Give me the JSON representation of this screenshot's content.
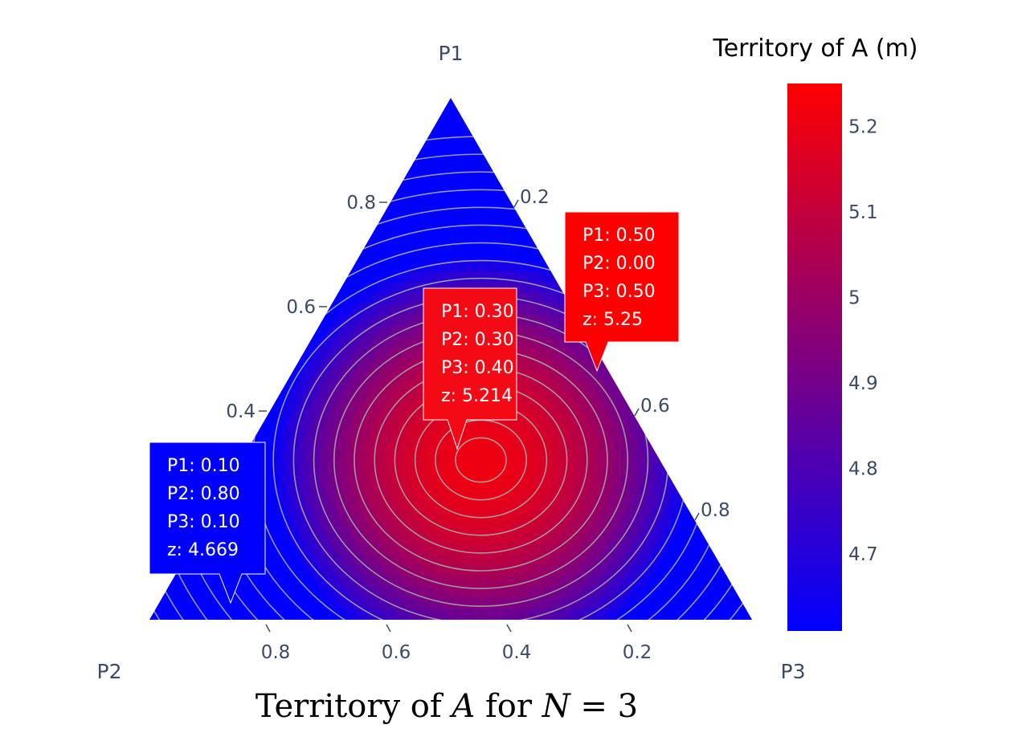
{
  "chart_data": {
    "type": "ternary-contour",
    "title_parts": [
      {
        "text": "Territory of ",
        "italic": false
      },
      {
        "text": "A",
        "italic": true
      },
      {
        "text": " for ",
        "italic": false
      },
      {
        "text": "N",
        "italic": true
      },
      {
        "text": " = 3",
        "italic": false
      }
    ],
    "axes": {
      "a": {
        "title": "P1",
        "ticks": [
          "0.8",
          "0.6",
          "0.4"
        ],
        "tick_values": [
          0.8,
          0.6,
          0.4
        ]
      },
      "b": {
        "title": "P2",
        "ticks": [
          "0.8",
          "0.6",
          "0.4",
          "0.2"
        ],
        "tick_values": [
          0.8,
          0.6,
          0.4,
          0.2
        ]
      },
      "c": {
        "title": "P3",
        "ticks": [
          "0.2",
          "0.6",
          "0.8"
        ],
        "tick_values": [
          0.2,
          0.6,
          0.8
        ]
      }
    },
    "colorbar": {
      "title": "Territory of A (m)",
      "ticks": [
        "5.2",
        "5.1",
        "5",
        "4.9",
        "4.8",
        "4.7"
      ],
      "tick_values": [
        5.2,
        5.1,
        5.0,
        4.9,
        4.8,
        4.7
      ],
      "range": [
        4.61,
        5.25
      ],
      "colorscale": [
        "#0000ff",
        "#ff0000"
      ]
    },
    "peak": {
      "P1": 0.3,
      "P2": 0.3,
      "P3": 0.4,
      "z": 5.214
    },
    "annotations": [
      {
        "id": "annotation-center",
        "lines": [
          "P1: 0.30",
          "P2: 0.30",
          "P3: 0.40",
          "z: 5.214"
        ],
        "P1": 0.3,
        "P2": 0.3,
        "P3": 0.4,
        "z": 5.214,
        "color": "#f40a14"
      },
      {
        "id": "annotation-edge",
        "lines": [
          "P1: 0.50",
          "P2: 0.00",
          "P3: 0.50",
          "z: 5.25"
        ],
        "P1": 0.5,
        "P2": 0.0,
        "P3": 0.5,
        "z": 5.25,
        "color": "#ff0000"
      },
      {
        "id": "annotation-corner",
        "lines": [
          "P1: 0.10",
          "P2: 0.80",
          "P3: 0.10",
          "z: 4.669"
        ],
        "P1": 0.1,
        "P2": 0.8,
        "P3": 0.1,
        "z": 4.669,
        "color": "#0000ff"
      }
    ],
    "contour_line_color": "#a6a6a6"
  }
}
